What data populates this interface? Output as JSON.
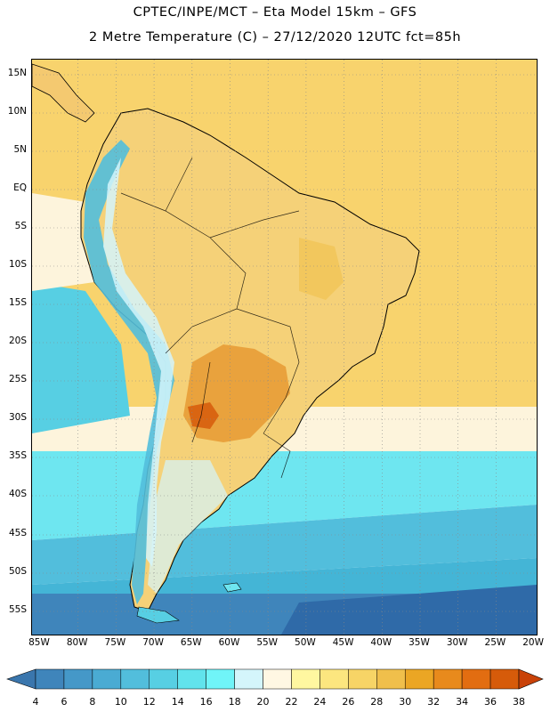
{
  "title_line1": "CPTEC/INPE/MCT –   Eta Model 15km – GFS",
  "title_line2": "2 Metre Temperature (C) – 27/12/2020 12UTC fct=85h",
  "lat_labels": [
    "15N",
    "10N",
    "5N",
    "EQ",
    "5S",
    "10S",
    "15S",
    "20S",
    "25S",
    "30S",
    "35S",
    "40S",
    "45S",
    "50S",
    "55S"
  ],
  "lon_labels": [
    "85W",
    "80W",
    "75W",
    "70W",
    "65W",
    "60W",
    "55W",
    "50W",
    "45W",
    "40W",
    "35W",
    "30W",
    "25W",
    "20W"
  ],
  "colorbar": {
    "labels": [
      "4",
      "6",
      "8",
      "10",
      "12",
      "14",
      "16",
      "18",
      "20",
      "22",
      "24",
      "26",
      "28",
      "30",
      "32",
      "34",
      "36",
      "38"
    ],
    "colors": [
      "#3a76ad",
      "#3f85bb",
      "#4598c8",
      "#4aabd3",
      "#52bedc",
      "#57cfe3",
      "#61e3ec",
      "#70f4f8",
      "#d4f5fb",
      "#fff7e3",
      "#fff7a0",
      "#fce67f",
      "#f7d466",
      "#f0bf4b",
      "#eba624",
      "#e88a1c",
      "#e26d11",
      "#d65b0a",
      "#c94208"
    ]
  },
  "map": {
    "continent_color": "#f5d178",
    "hot_color": "#e69a33",
    "ocean_north_color": "#f8d36d",
    "ocean_south_colors": [
      "#fdf4dc",
      "#6ee6f0",
      "#55d2e6",
      "#44b5d6",
      "#3f95c4",
      "#2f6aa8"
    ]
  }
}
